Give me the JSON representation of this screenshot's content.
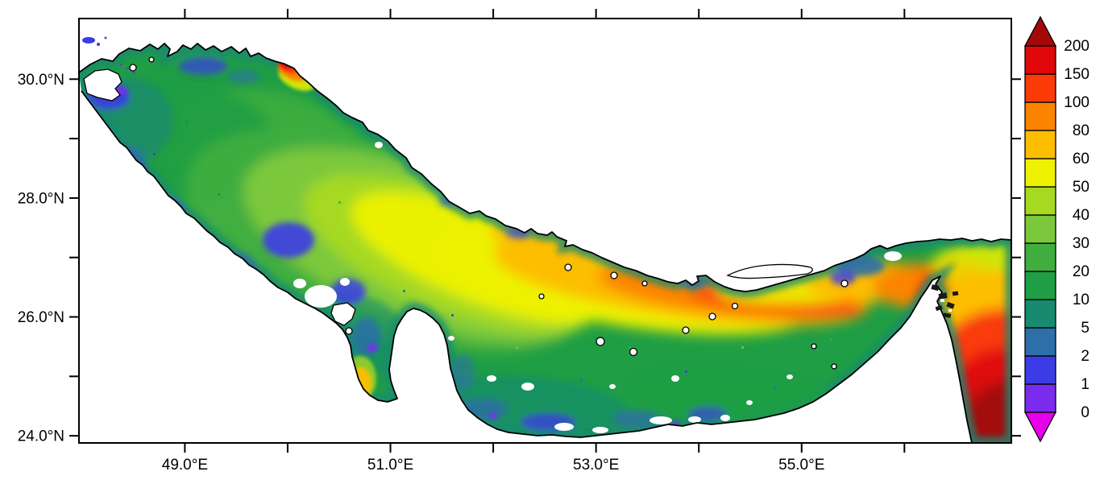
{
  "figure": {
    "title": "",
    "region_depicted": "Persian Gulf, Strait of Hormuz and Gulf of Oman"
  },
  "chart_data": {
    "type": "heatmap",
    "title": "",
    "xlabel": "",
    "ylabel": "",
    "grid": false,
    "x_axis": {
      "lim": [
        47.97,
        57.04
      ],
      "labeled_ticks": [
        {
          "value": 49,
          "label": "49.0°E"
        },
        {
          "value": 51,
          "label": "51.0°E"
        },
        {
          "value": 53,
          "label": "53.0°E"
        },
        {
          "value": 55,
          "label": "55.0°E"
        }
      ],
      "minor_ticks": [
        50,
        52,
        54,
        56
      ]
    },
    "y_axis": {
      "lim": [
        23.88,
        31.02
      ],
      "labeled_ticks": [
        {
          "value": 30,
          "label": "30.0°N"
        },
        {
          "value": 28,
          "label": "28.0°N"
        },
        {
          "value": 26,
          "label": "26.0°N"
        },
        {
          "value": 24,
          "label": "24.0°N"
        }
      ],
      "minor_ticks": [
        29,
        27,
        25
      ]
    },
    "colorbar": {
      "levels": [
        0,
        1,
        2,
        5,
        10,
        20,
        30,
        40,
        50,
        60,
        80,
        100,
        150,
        200
      ],
      "labels": [
        "0",
        "1",
        "2",
        "5",
        "10",
        "20",
        "30",
        "40",
        "50",
        "60",
        "80",
        "100",
        "150",
        "200"
      ],
      "segment_colors": [
        "#7B2BEE",
        "#3C3CE6",
        "#2D6FA8",
        "#178A70",
        "#1F9E45",
        "#3FAE3F",
        "#7CC83C",
        "#A5D922",
        "#EDF202",
        "#FDBE02",
        "#FB8500",
        "#FA3B08",
        "#E00808"
      ],
      "under_arrow_color": "#E800E8",
      "over_arrow_color": "#A40808"
    },
    "field_description": "Green basin values 5-40 over most of the Gulf; yellow-orange band 50-100 along the central axis intensifying eastward; red 100-200 near the Strait of Hormuz; dark red >200 in the Gulf of Oman at lower right; blue-violet lows 0-5 along coasts; white areas are land / no data."
  }
}
